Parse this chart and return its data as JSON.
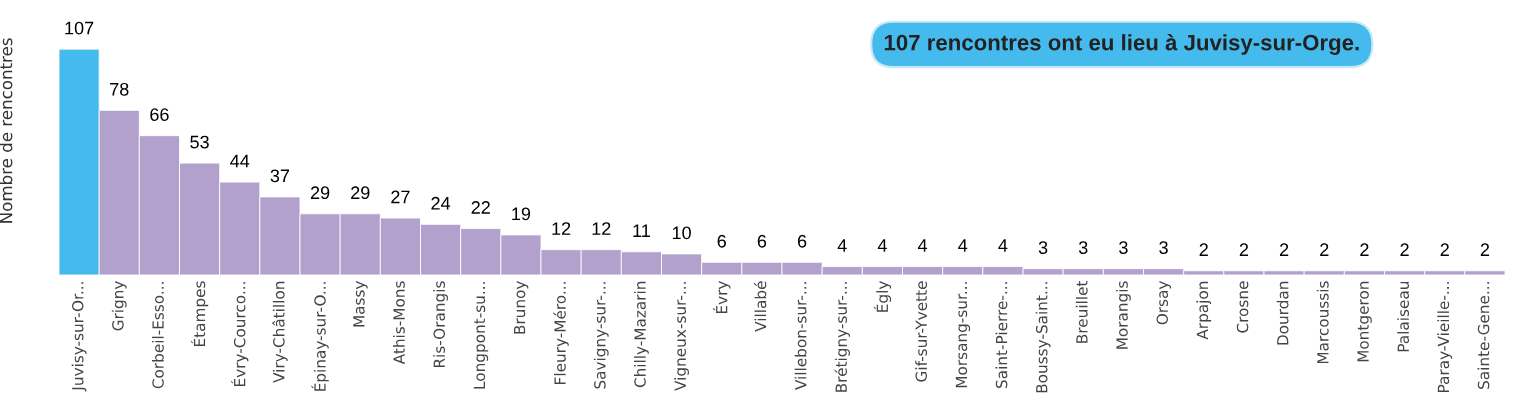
{
  "chart_data": {
    "type": "bar",
    "ylabel": "Nombre de rencontres",
    "annotations": [
      "107 rencontres ont eu lieu à Juvisy-sur-Orge."
    ],
    "categories": [
      "Juvisy-sur-Or...",
      "Grigny",
      "Corbeil-Esso...",
      "Étampes",
      "Évry-Courco...",
      "Viry-Châtillon",
      "Épinay-sur-O...",
      "Massy",
      "Athis-Mons",
      "Ris-Orangis",
      "Longpont-su...",
      "Brunoy",
      "Fleury-Méro...",
      "Savigny-sur-...",
      "Chilly-Mazarin",
      "Vigneux-sur-...",
      "Évry",
      "Villabé",
      "Villebon-sur-...",
      "Brétigny-sur-...",
      "Égly",
      "Gif-sur-Yvette",
      "Morsang-sur...",
      "Saint-Pierre-...",
      "Boussy-Saint...",
      "Breuillet",
      "Morangis",
      "Orsay",
      "Arpajon",
      "Crosne",
      "Dourdan",
      "Marcoussis",
      "Montgeron",
      "Palaiseau",
      "Paray-Vieille-...",
      "Sainte-Gene..."
    ],
    "values": [
      107,
      78,
      66,
      53,
      44,
      37,
      29,
      29,
      27,
      24,
      22,
      19,
      12,
      12,
      11,
      10,
      6,
      6,
      6,
      4,
      4,
      4,
      4,
      4,
      3,
      3,
      3,
      3,
      2,
      2,
      2,
      2,
      2,
      2,
      2,
      2
    ],
    "colors": [
      "#45baed",
      "#b3a1cd",
      "#b3a1cd",
      "#b3a1cd",
      "#b3a1cd",
      "#b3a1cd",
      "#b3a1cd",
      "#b3a1cd",
      "#b3a1cd",
      "#b3a1cd",
      "#b3a1cd",
      "#b3a1cd",
      "#b3a1cd",
      "#b3a1cd",
      "#b3a1cd",
      "#b3a1cd",
      "#b3a1cd",
      "#b3a1cd",
      "#b3a1cd",
      "#b3a1cd",
      "#b3a1cd",
      "#b3a1cd",
      "#b3a1cd",
      "#b3a1cd",
      "#b3a1cd",
      "#b3a1cd",
      "#b3a1cd",
      "#b3a1cd",
      "#b3a1cd",
      "#b3a1cd",
      "#b3a1cd",
      "#b3a1cd",
      "#b3a1cd",
      "#b3a1cd",
      "#b3a1cd",
      "#b3a1cd"
    ],
    "data_labels": true,
    "grid": false,
    "legend": false
  }
}
